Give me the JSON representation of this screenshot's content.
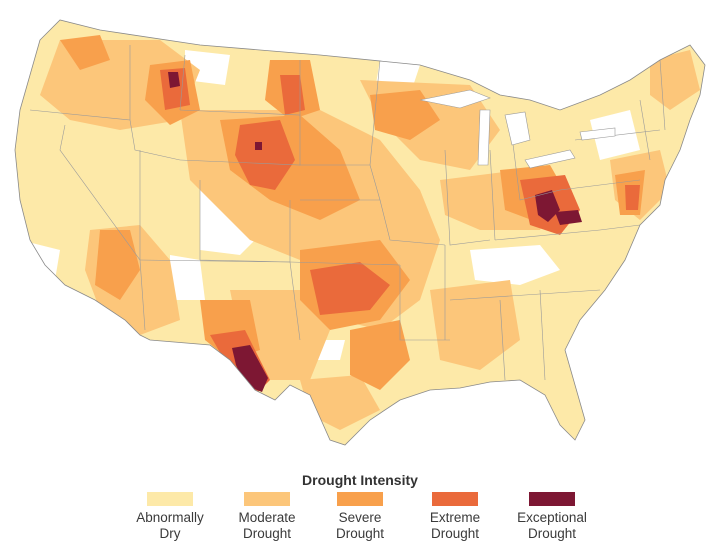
{
  "legend": {
    "title": "Drought Intensity",
    "items": [
      {
        "label": "Abnormally\nDry",
        "color": "#fde9a8"
      },
      {
        "label": "Moderate\nDrought",
        "color": "#fcc67a"
      },
      {
        "label": "Severe\nDrought",
        "color": "#f8a04c"
      },
      {
        "label": "Extreme\nDrought",
        "color": "#ea6a3b"
      },
      {
        "label": "Exceptional\nDrought",
        "color": "#7d1733"
      }
    ]
  }
}
